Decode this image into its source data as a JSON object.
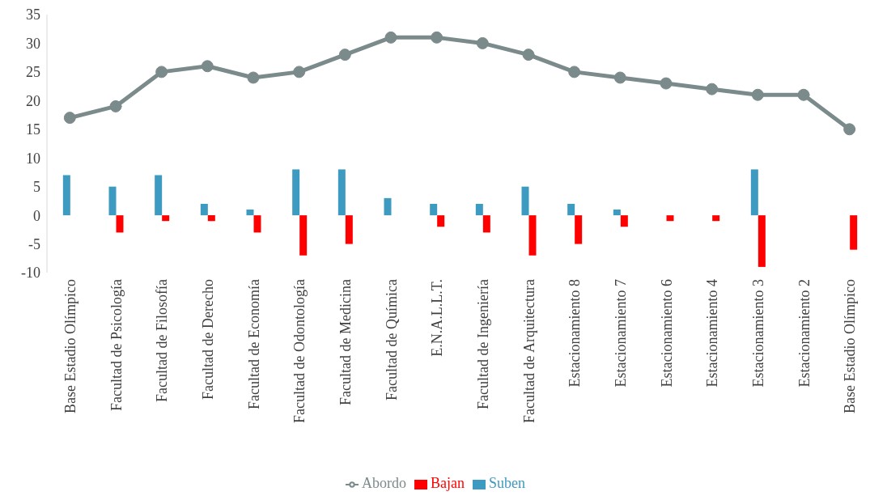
{
  "chart_data": {
    "type": "bar",
    "categories": [
      "Base Estadio Olímpico",
      "Facultad de Psicología",
      "Facultad de Filosofía",
      "Facultad de Derecho",
      "Facultad de Economía",
      "Facultad de Odontología",
      "Facultad de Medicina",
      "Facultad de Química",
      "E.N.A.L.L.T.",
      "Facultad de Ingeniería",
      "Facultad de Arquitectura",
      "Estacionamiento 8",
      "Estacionamiento 7",
      "Estacionamiento 6",
      "Estacionamiento 4",
      "Estacionamiento 3",
      "Estacionamiento 2",
      "Base Estadio Olímpico"
    ],
    "series": [
      {
        "name": "Suben",
        "color": "#3d9ac0",
        "values": [
          7,
          5,
          7,
          2,
          1,
          8,
          8,
          3,
          2,
          2,
          5,
          2,
          1,
          0,
          0,
          8,
          0,
          0
        ]
      },
      {
        "name": "Bajan",
        "color": "#ff0000",
        "values": [
          0,
          -3,
          -1,
          -1,
          -3,
          -7,
          -5,
          0,
          -2,
          -3,
          -7,
          -5,
          -2,
          -1,
          -1,
          -9,
          0,
          -6
        ]
      },
      {
        "name": "Abordo",
        "type": "line",
        "color": "#7b8a8b",
        "marker": "circle",
        "values": [
          17,
          19,
          25,
          26,
          24,
          25,
          28,
          31,
          31,
          30,
          28,
          25,
          24,
          23,
          22,
          21,
          21,
          15
        ]
      }
    ],
    "ylim": [
      -10,
      35
    ],
    "yticks": [
      -10,
      -5,
      0,
      5,
      10,
      15,
      20,
      25,
      30,
      35
    ],
    "grid": false,
    "legend": "bottom"
  }
}
